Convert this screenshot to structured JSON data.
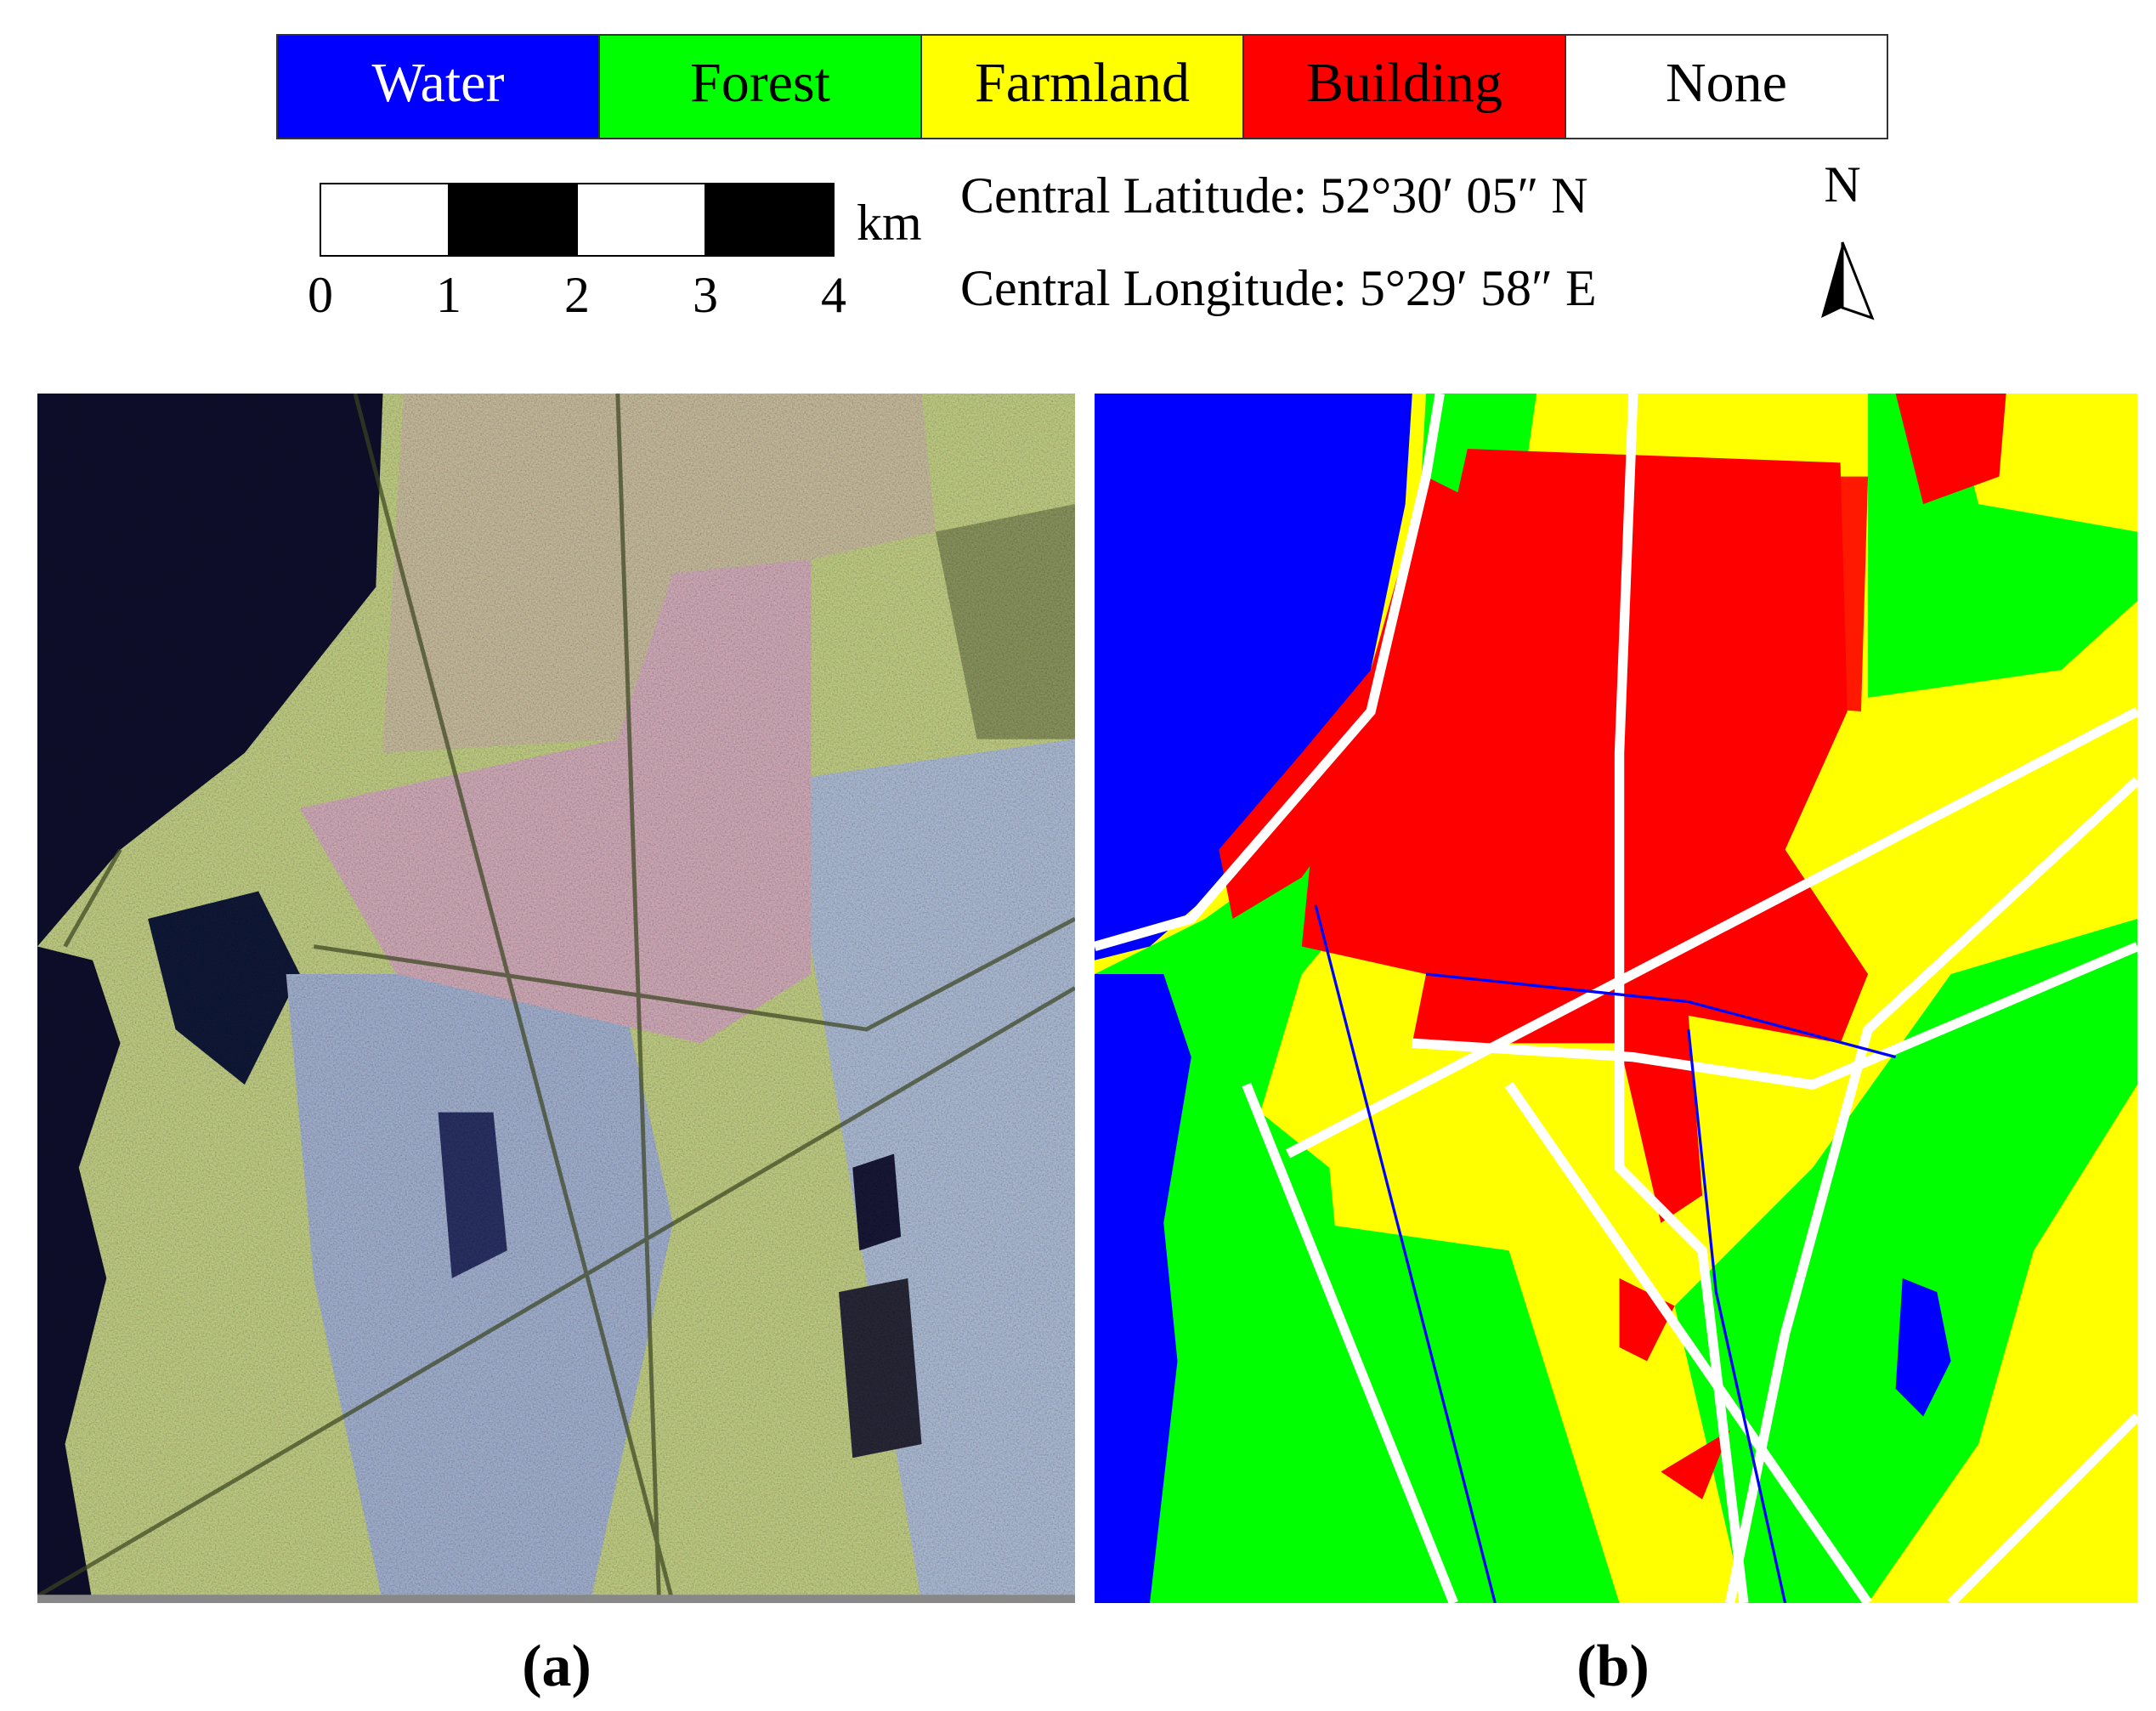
{
  "legend": [
    {
      "label": "Water",
      "color": "#0000ff",
      "text_color": "#ffffff"
    },
    {
      "label": "Forest",
      "color": "#00ff00",
      "text_color": "#000000"
    },
    {
      "label": "Farmland",
      "color": "#ffff00",
      "text_color": "#000000"
    },
    {
      "label": "Building",
      "color": "#ff0000",
      "text_color": "#000000"
    },
    {
      "label": "None",
      "color": "#ffffff",
      "text_color": "#000000"
    }
  ],
  "scale_bar": {
    "labels": [
      "0",
      "1",
      "2",
      "3",
      "4"
    ],
    "unit": "km"
  },
  "location": {
    "latitude": "Central Latitude: 52°30′  05″  N",
    "longitude": "Central Longitude: 5°29′  58″  E"
  },
  "north_arrow": "N",
  "panels": [
    {
      "caption": "(a)"
    },
    {
      "caption": "(b)"
    }
  ]
}
